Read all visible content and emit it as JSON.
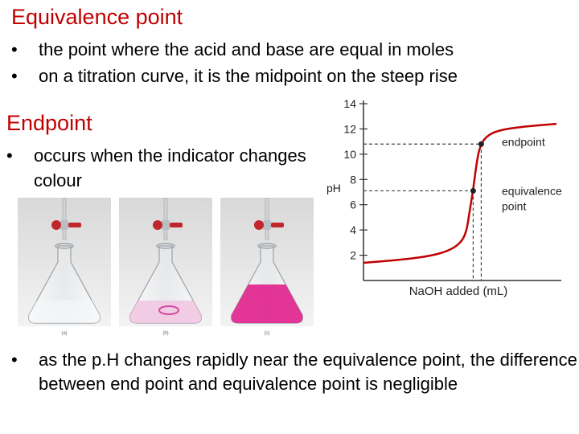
{
  "section1": {
    "title": "Equivalence point",
    "bullets": [
      "the point where the acid and base are equal in moles",
      "on a titration curve, it is the midpoint on the steep rise"
    ]
  },
  "section2": {
    "title": "Endpoint",
    "bullet": "occurs when the indicator changes colour"
  },
  "footer_bullet": "as the p.H changes rapidly near the equivalence point, the difference between end point and equivalence point is negligible",
  "photo": {
    "captions": [
      "(a)",
      "(b)",
      "(c)"
    ],
    "solution_colors": [
      "#f4f6f8",
      "#f2c6e2",
      "#e0208c"
    ]
  },
  "chart_data": {
    "type": "line",
    "ylabel": "pH",
    "xlabel": "NaOH added (mL)",
    "ylim": [
      0,
      14
    ],
    "yticks": [
      2,
      4,
      6,
      8,
      10,
      12,
      14
    ],
    "curve_color": "#c00000",
    "points": [
      [
        0,
        1.4
      ],
      [
        10,
        1.6
      ],
      [
        20,
        1.9
      ],
      [
        26,
        2.3
      ],
      [
        30,
        2.9
      ],
      [
        32,
        3.8
      ],
      [
        33,
        5.5
      ],
      [
        34,
        7
      ],
      [
        35,
        9
      ],
      [
        36,
        10.5
      ],
      [
        38,
        11.4
      ],
      [
        42,
        11.9
      ],
      [
        50,
        12.2
      ],
      [
        60,
        12.4
      ]
    ],
    "xlim": [
      0,
      60
    ],
    "annotations": [
      {
        "label": "endpoint",
        "x": 36.6,
        "y": 10.8
      },
      {
        "label": "equivalence point",
        "x": 34.1,
        "y": 7.1
      }
    ]
  }
}
